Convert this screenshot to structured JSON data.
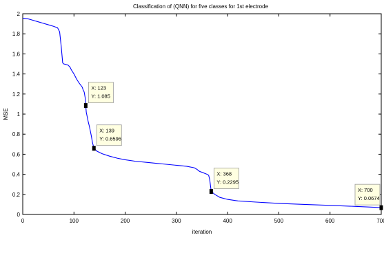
{
  "chart_data": {
    "type": "line",
    "title": "Classification of (QNN) for five classes for 1st electrode",
    "xlabel": "iteration",
    "ylabel": "MSE",
    "xlim": [
      0,
      700
    ],
    "ylim": [
      0,
      2
    ],
    "xticks": [
      "0",
      "100",
      "200",
      "300",
      "400",
      "500",
      "600",
      "700"
    ],
    "yticks": [
      "0",
      "0.2",
      "0.4",
      "0.6",
      "0.8",
      "1",
      "1.2",
      "1.4",
      "1.6",
      "1.8",
      "2"
    ],
    "grid": false,
    "line_color": "#0000ff",
    "series": [
      {
        "x": [
          0,
          10,
          20,
          30,
          40,
          50,
          60,
          68,
          72,
          75,
          78,
          80,
          88,
          92,
          95,
          100,
          105,
          110,
          113,
          116,
          118,
          120,
          122,
          123,
          124,
          126,
          128,
          130,
          132,
          134,
          136,
          139,
          145,
          155,
          170,
          185,
          200,
          220,
          240,
          260,
          280,
          300,
          310,
          320,
          325,
          330,
          335,
          340,
          345,
          350,
          355,
          360,
          363,
          365,
          367,
          368,
          375,
          385,
          400,
          420,
          450,
          500,
          550,
          600,
          650,
          690,
          700
        ],
        "y": [
          1.955,
          1.95,
          1.935,
          1.92,
          1.905,
          1.89,
          1.875,
          1.86,
          1.82,
          1.68,
          1.51,
          1.5,
          1.49,
          1.47,
          1.44,
          1.4,
          1.35,
          1.31,
          1.29,
          1.27,
          1.24,
          1.22,
          1.16,
          1.085,
          1.02,
          0.97,
          0.92,
          0.88,
          0.83,
          0.78,
          0.72,
          0.6596,
          0.63,
          0.605,
          0.58,
          0.56,
          0.545,
          0.53,
          0.52,
          0.51,
          0.5,
          0.49,
          0.485,
          0.48,
          0.475,
          0.47,
          0.465,
          0.45,
          0.43,
          0.42,
          0.41,
          0.4,
          0.39,
          0.35,
          0.27,
          0.2295,
          0.2,
          0.17,
          0.15,
          0.135,
          0.125,
          0.11,
          0.1,
          0.09,
          0.08,
          0.0705,
          0.0674
        ]
      }
    ],
    "datatips": [
      {
        "x": 123,
        "y": 1.085,
        "label_x": "X: 123",
        "label_y": "Y: 1.085"
      },
      {
        "x": 139,
        "y": 0.6596,
        "label_x": "X: 139",
        "label_y": "Y: 0.6596"
      },
      {
        "x": 368,
        "y": 0.2295,
        "label_x": "X: 368",
        "label_y": "Y: 0.2295"
      },
      {
        "x": 700,
        "y": 0.0674,
        "label_x": "X: 700",
        "label_y": "Y: 0.0674"
      }
    ]
  }
}
